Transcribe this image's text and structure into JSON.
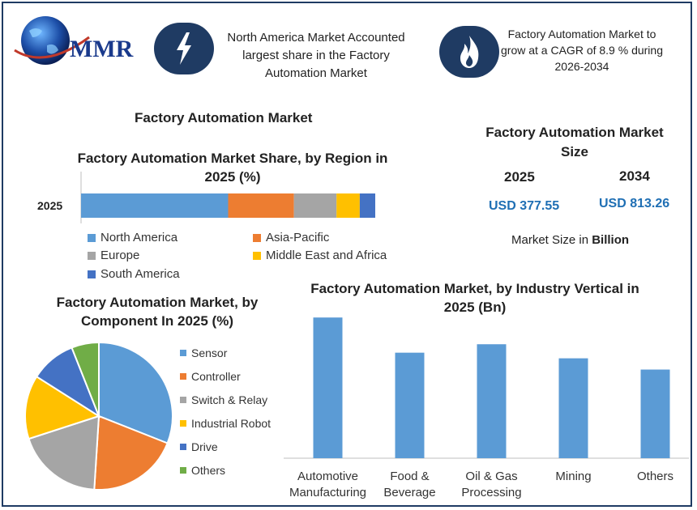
{
  "logo": {
    "text": "MMR"
  },
  "header": {
    "box1": {
      "icon": "lightning-icon",
      "text": "North America Market Accounted largest share in the Factory Automation Market"
    },
    "box2": {
      "icon": "flame-icon",
      "text": "Factory Automation Market to grow at a CAGR of 8.9 % during 2026-2034"
    }
  },
  "main_title": "Factory Automation Market",
  "size_panel": {
    "title": "Factory Automation Market Size",
    "year1": "2025",
    "year2": "2034",
    "value1": "USD 377.55",
    "value2": "USD 813.26",
    "note_prefix": "Market Size in ",
    "note_bold": "Billion"
  },
  "colors": {
    "blue": "#5b9bd5",
    "orange": "#ed7d31",
    "gray": "#a5a5a5",
    "yellow": "#ffc000",
    "darkblue": "#4472c4",
    "green": "#70ad47",
    "accent": "#1f6fb4",
    "icon_bg": "#1f3b63"
  },
  "chart_data": [
    {
      "type": "bar",
      "orientation": "horizontal-stacked",
      "title": "Factory Automation Market Share, by Region in 2025 (%)",
      "categories": [
        "2025"
      ],
      "series": [
        {
          "name": "North America",
          "values": [
            38
          ]
        },
        {
          "name": "Asia-Pacific",
          "values": [
            17
          ]
        },
        {
          "name": "Europe",
          "values": [
            11
          ]
        },
        {
          "name": "Middle East and Africa",
          "values": [
            6
          ]
        },
        {
          "name": "South America",
          "values": [
            4
          ]
        }
      ],
      "xlim": [
        0,
        100
      ],
      "legend": "bottom"
    },
    {
      "type": "pie",
      "title": "Factory Automation Market, by Component In 2025 (%)",
      "labels": [
        "Sensor",
        "Controller",
        "Switch & Relay",
        "Industrial Robot",
        "Drive",
        "Others"
      ],
      "values": [
        31,
        20,
        19,
        14,
        10,
        6
      ],
      "legend": "right"
    },
    {
      "type": "bar",
      "title": "Factory Automation Market, by Industry Vertical in 2025 (Bn)",
      "categories": [
        "Automotive Manufacturing",
        "Food & Beverage",
        "Oil & Gas Processing",
        "Mining",
        "Others"
      ],
      "values": [
        100,
        75,
        81,
        71,
        63
      ],
      "ylim": [
        0,
        110
      ],
      "grid": false
    }
  ]
}
